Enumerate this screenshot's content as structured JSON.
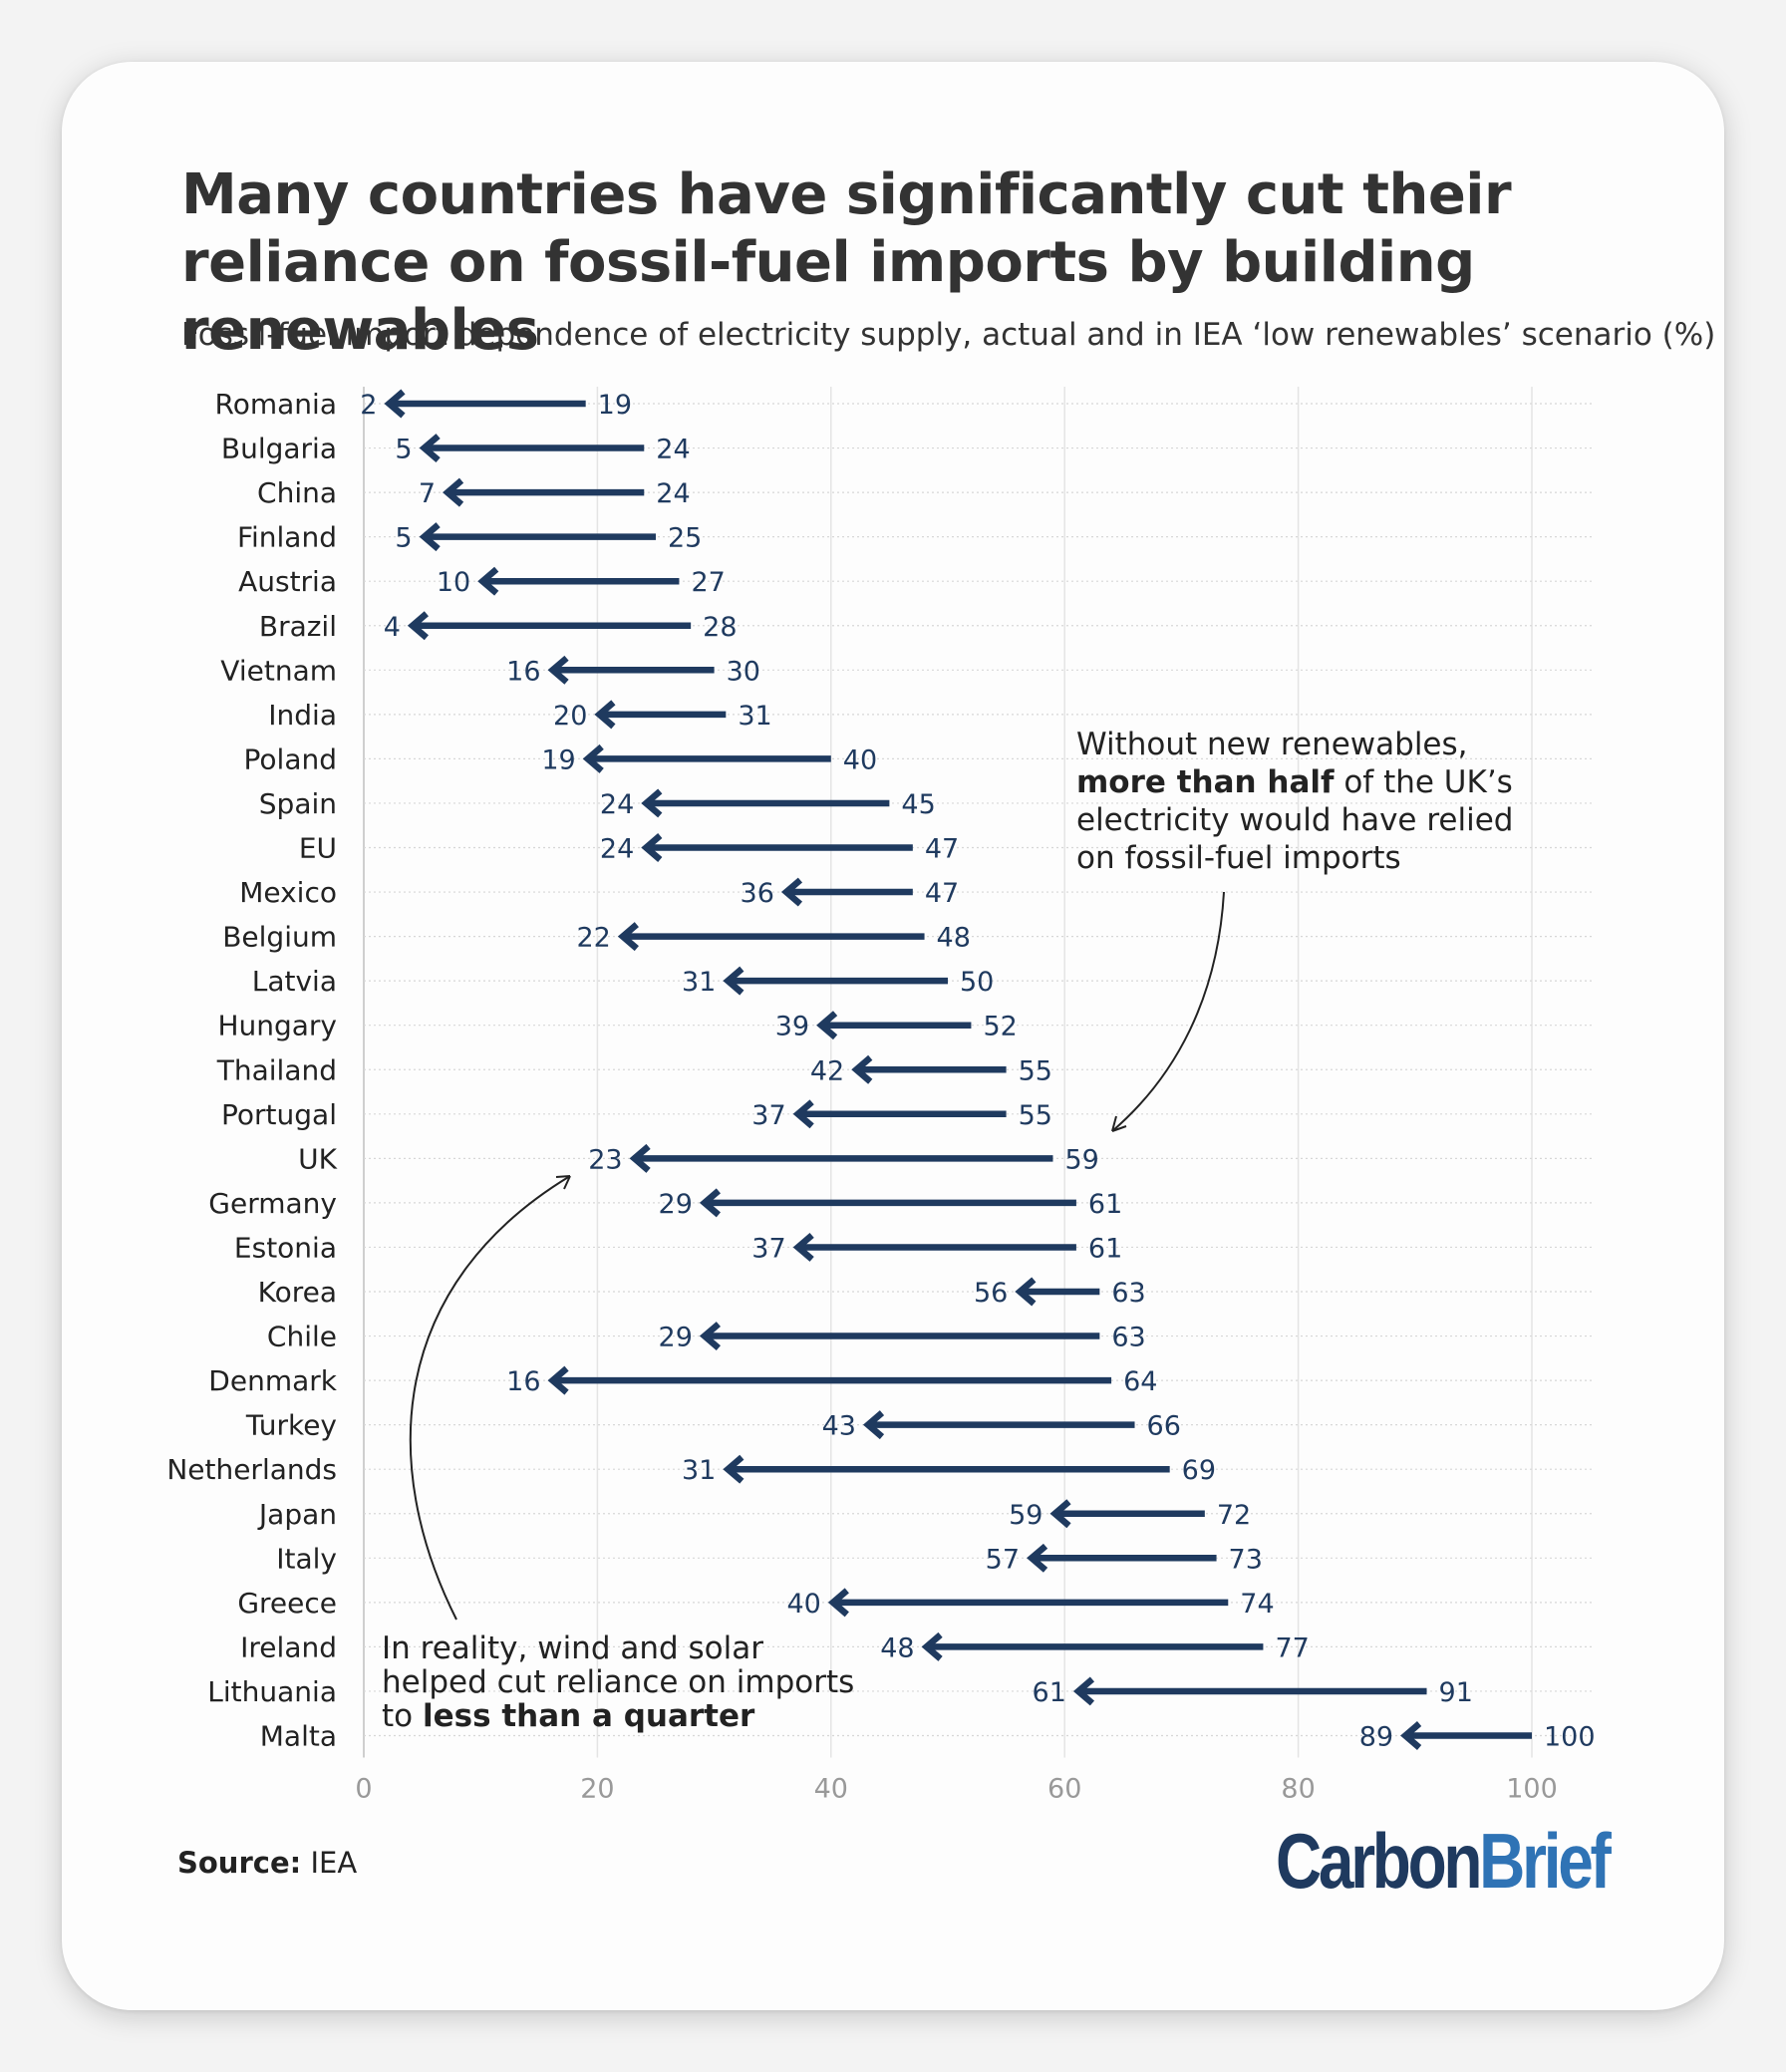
{
  "title": "Many countries have significantly cut their reliance on fossil-fuel imports by building renewables",
  "subtitle": "Fossil-fuel import dependence of electricity supply, actual and in IEA ‘low renewables’ scenario (%)",
  "source_label": "Source:",
  "source_value": "IEA",
  "logo": {
    "part1": "Carbon",
    "part2": "Brief"
  },
  "annotations": {
    "top": {
      "pre": "Without new renewables,",
      "bold": "more than half",
      "mid": " of the UK’s",
      "l3": "electricity would have relied",
      "l4": "on fossil-fuel imports"
    },
    "bottom": {
      "l1": "In reality, wind and solar",
      "l2": "helped cut reliance on imports",
      "pre3": "to ",
      "bold": "less than a quarter"
    }
  },
  "colors": {
    "arrow": "#1f3a5f",
    "label": "#1f3a5f",
    "grid": "#e4e4e4",
    "axis": "#999999"
  },
  "chart_data": {
    "type": "arrow",
    "title": "Many countries have significantly cut their reliance on fossil-fuel imports by building renewables",
    "subtitle": "Fossil-fuel import dependence of electricity supply, actual and in IEA ‘low renewables’ scenario (%)",
    "xlim": [
      0,
      100
    ],
    "xticks": [
      0,
      20,
      40,
      60,
      80,
      100
    ],
    "grid": true,
    "categories": [
      "Romania",
      "Bulgaria",
      "China",
      "Finland",
      "Austria",
      "Brazil",
      "Vietnam",
      "India",
      "Poland",
      "Spain",
      "EU",
      "Mexico",
      "Belgium",
      "Latvia",
      "Hungary",
      "Thailand",
      "Portugal",
      "UK",
      "Germany",
      "Estonia",
      "Korea",
      "Chile",
      "Denmark",
      "Turkey",
      "Netherlands",
      "Japan",
      "Italy",
      "Greece",
      "Ireland",
      "Lithuania",
      "Malta"
    ],
    "series": [
      {
        "values": [
          19,
          24,
          24,
          25,
          27,
          28,
          30,
          31,
          40,
          45,
          47,
          47,
          48,
          50,
          52,
          55,
          55,
          59,
          61,
          61,
          63,
          63,
          64,
          66,
          69,
          72,
          73,
          74,
          77,
          91,
          100
        ]
      },
      {
        "values": [
          2,
          5,
          7,
          5,
          10,
          4,
          16,
          20,
          19,
          24,
          24,
          36,
          22,
          31,
          39,
          42,
          37,
          23,
          29,
          37,
          56,
          29,
          16,
          43,
          31,
          59,
          57,
          40,
          48,
          61,
          89
        ]
      }
    ]
  }
}
